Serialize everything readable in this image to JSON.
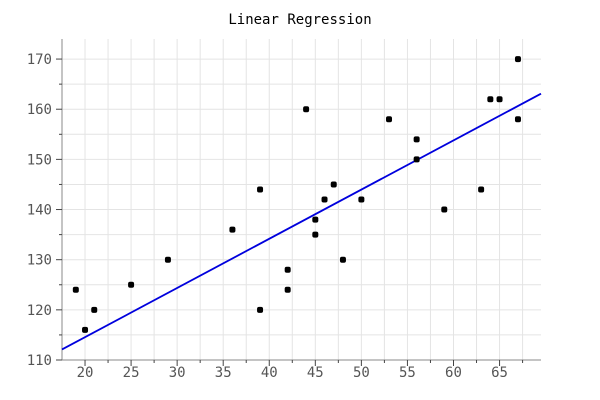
{
  "chart_data": {
    "type": "scatter",
    "title": "Linear Regression",
    "xlabel": "",
    "ylabel": "",
    "xlim": [
      17.5,
      69.5
    ],
    "ylim": [
      110,
      174
    ],
    "xticks": [
      20,
      25,
      30,
      35,
      40,
      45,
      50,
      55,
      60,
      65
    ],
    "yticks": [
      110,
      120,
      130,
      140,
      150,
      160,
      170
    ],
    "grid": true,
    "points": [
      [
        19,
        124
      ],
      [
        20,
        116
      ],
      [
        21,
        120
      ],
      [
        25,
        125
      ],
      [
        29,
        130
      ],
      [
        36,
        136
      ],
      [
        39,
        144
      ],
      [
        39,
        120
      ],
      [
        42,
        128
      ],
      [
        42,
        124
      ],
      [
        44,
        160
      ],
      [
        45,
        138
      ],
      [
        45,
        135
      ],
      [
        46,
        142
      ],
      [
        47,
        145
      ],
      [
        48,
        130
      ],
      [
        50,
        142
      ],
      [
        53,
        158
      ],
      [
        56,
        154
      ],
      [
        56,
        150
      ],
      [
        59,
        140
      ],
      [
        63,
        144
      ],
      [
        64,
        162
      ],
      [
        65,
        162
      ],
      [
        67,
        170
      ],
      [
        67,
        158
      ]
    ],
    "regression_line": [
      [
        17.5,
        112.1
      ],
      [
        69.5,
        163.1
      ]
    ],
    "colors": {
      "points": "#000000",
      "line": "#0000dd",
      "grid": "#e4e4e4",
      "background": "#ffffff"
    }
  }
}
